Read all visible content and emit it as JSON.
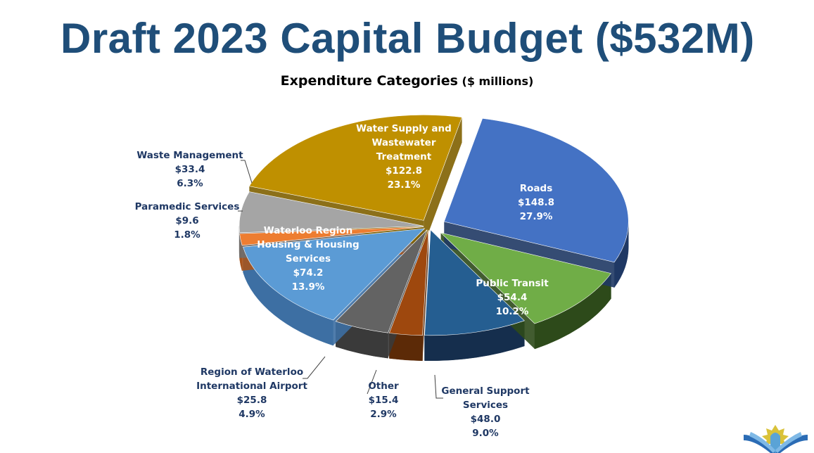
{
  "slide": {
    "title": "Draft 2023 Capital Budget ($532M)"
  },
  "chart_data": {
    "type": "pie",
    "title": "Expenditure Categories",
    "title_unit": "($ millions)",
    "total_label": "$532M",
    "slices": [
      {
        "label": "Roads",
        "value": 148.8,
        "value_label": "$148.8",
        "percent_label": "27.9%",
        "color": "#4472c4",
        "side_color": "#1f3864",
        "label_color": "#ffffff"
      },
      {
        "label": "Public Transit",
        "value": 54.4,
        "value_label": "$54.4",
        "percent_label": "10.2%",
        "color": "#70ad47",
        "side_color": "#2d4a1a",
        "label_color": "#ffffff"
      },
      {
        "label": "General Support Services",
        "value": 48.0,
        "value_label": "$48.0",
        "percent_label": "9.0%",
        "color": "#255e91",
        "side_color": "#152e4d",
        "label_color": "#1f3864"
      },
      {
        "label": "Other",
        "value": 15.4,
        "value_label": "$15.4",
        "percent_label": "2.9%",
        "color": "#9e480e",
        "side_color": "#5c2a07",
        "label_color": "#1f3864"
      },
      {
        "label": "Region of Waterloo International Airport",
        "value": 25.8,
        "value_label": "$25.8",
        "percent_label": "4.9%",
        "color": "#636363",
        "side_color": "#3a3a3a",
        "label_color": "#1f3864"
      },
      {
        "label": "Waterloo Region Housing & Housing Services",
        "value": 74.2,
        "value_label": "$74.2",
        "percent_label": "13.9%",
        "color": "#5b9bd5",
        "side_color": "#3d6fa3",
        "label_color": "#ffffff"
      },
      {
        "label": "Paramedic Services",
        "value": 9.6,
        "value_label": "$9.6",
        "percent_label": "1.8%",
        "color": "#ed7d31",
        "side_color": "#a6531c",
        "label_color": "#1f3864"
      },
      {
        "label": "Waste Management",
        "value": 33.4,
        "value_label": "$33.4",
        "percent_label": "6.3%",
        "color": "#a5a5a5",
        "side_color": "#6e6e6e",
        "label_color": "#1f3864"
      },
      {
        "label": "Water Supply and Wastewater Treatment",
        "value": 122.8,
        "value_label": "$122.8",
        "percent_label": "23.1%",
        "color": "#bf9000",
        "side_color": "#7f6000",
        "label_color": "#ffffff"
      }
    ],
    "style": "3d-exploded",
    "legend": "none"
  }
}
